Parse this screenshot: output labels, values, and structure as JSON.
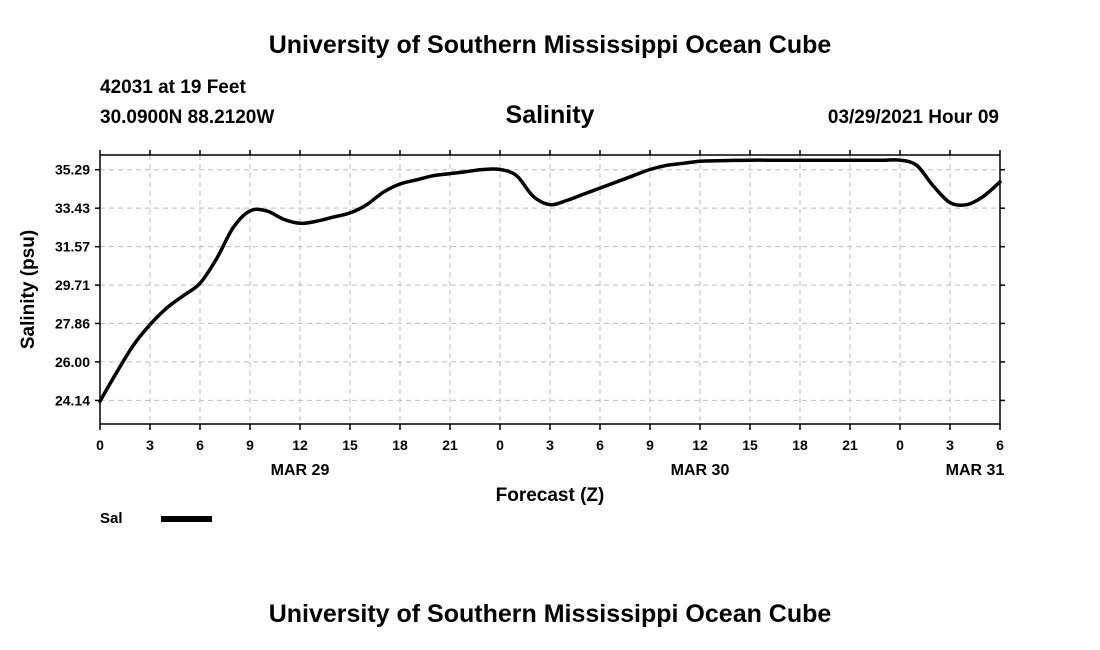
{
  "header": {
    "title": "University of Southern Mississippi Ocean Cube",
    "station": "42031 at 19 Feet",
    "coords": "30.0900N  88.2120W",
    "datetime": "03/29/2021 Hour 09"
  },
  "footer": {
    "title": "University of Southern Mississippi Ocean Cube"
  },
  "chart_data": {
    "type": "line",
    "title": "Salinity",
    "xlabel": "Forecast (Z)",
    "ylabel": "Salinity (psu)",
    "ylim": [
      23.0,
      36.0
    ],
    "xlim": [
      0,
      54
    ],
    "yticks": [
      "24.14",
      "26.00",
      "27.86",
      "29.71",
      "31.57",
      "33.43",
      "35.29"
    ],
    "xtick_labels": [
      "0",
      "3",
      "6",
      "9",
      "12",
      "15",
      "18",
      "21",
      "0",
      "3",
      "6",
      "9",
      "12",
      "15",
      "18",
      "21",
      "0",
      "3",
      "6"
    ],
    "date_labels": [
      {
        "label": "MAR 29",
        "hour": 12
      },
      {
        "label": "MAR 30",
        "hour": 36
      },
      {
        "label": "MAR 31",
        "hour": 52.5
      }
    ],
    "grid": true,
    "legend": {
      "position": "bottom-left",
      "entries": [
        {
          "name": "Sal",
          "color": "#000000"
        }
      ]
    },
    "series": [
      {
        "name": "Sal",
        "color": "#000000",
        "x": [
          0,
          1,
          2,
          3,
          4,
          5,
          6,
          7,
          8,
          9,
          10,
          11,
          12,
          13,
          14,
          15,
          16,
          17,
          18,
          19,
          20,
          21,
          22,
          23,
          24,
          25,
          26,
          27,
          28,
          29,
          30,
          31,
          32,
          33,
          34,
          35,
          36,
          37,
          38,
          39,
          40,
          41,
          42,
          43,
          44,
          45,
          46,
          47,
          48,
          49,
          50,
          51,
          52,
          53,
          54
        ],
        "values": [
          24.1,
          25.5,
          26.8,
          27.8,
          28.6,
          29.2,
          29.8,
          31.0,
          32.5,
          33.3,
          33.3,
          32.9,
          32.7,
          32.8,
          33.0,
          33.2,
          33.6,
          34.2,
          34.6,
          34.8,
          35.0,
          35.1,
          35.2,
          35.3,
          35.3,
          35.0,
          34.0,
          33.6,
          33.8,
          34.1,
          34.4,
          34.7,
          35.0,
          35.3,
          35.5,
          35.6,
          35.7,
          35.72,
          35.74,
          35.75,
          35.75,
          35.75,
          35.75,
          35.75,
          35.75,
          35.75,
          35.75,
          35.75,
          35.75,
          35.5,
          34.5,
          33.7,
          33.6,
          34.0,
          34.7
        ]
      }
    ]
  }
}
